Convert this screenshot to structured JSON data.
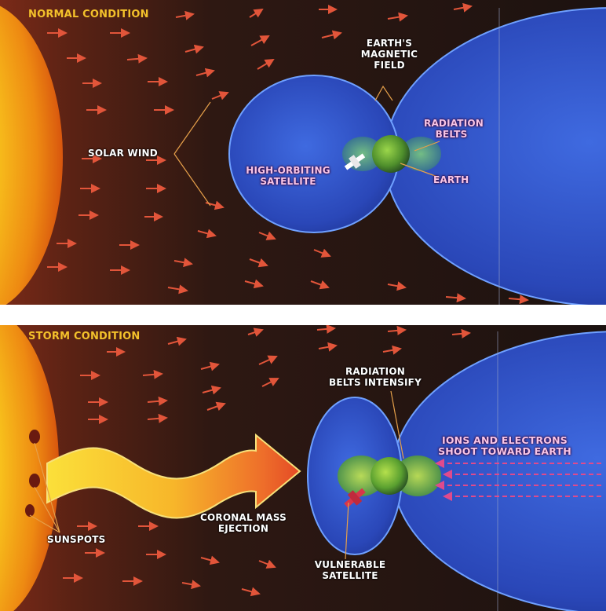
{
  "top_panel": {
    "title": "NORMAL CONDITION",
    "labels": {
      "solar_wind": "SOLAR WIND",
      "magnetic_field": "EARTH'S MAGNETIC FIELD",
      "radiation_belts": "RADIATION BELTS",
      "satellite": "HIGH-ORBITING SATELLITE",
      "earth": "EARTH"
    }
  },
  "bottom_panel": {
    "title": "STORM CONDITION",
    "labels": {
      "radiation_belts": "RADIATION BELTS INTENSIFY",
      "ions": "IONS AND ELECTRONS SHOOT TOWARD EARTH",
      "sunspots": "SUNSPOTS",
      "cme": "CORONAL MASS EJECTION",
      "satellite": "VULNERABLE SATELLITE"
    }
  },
  "colors": {
    "space": "#2a1612",
    "sun": "#f7b21b",
    "magnetosphere": "#2c4fc9",
    "solar_wind_arrow": "#e2553a",
    "title": "#f3c12b",
    "ion_arrow": "#e04a8c",
    "cme": "#f6d21e"
  }
}
